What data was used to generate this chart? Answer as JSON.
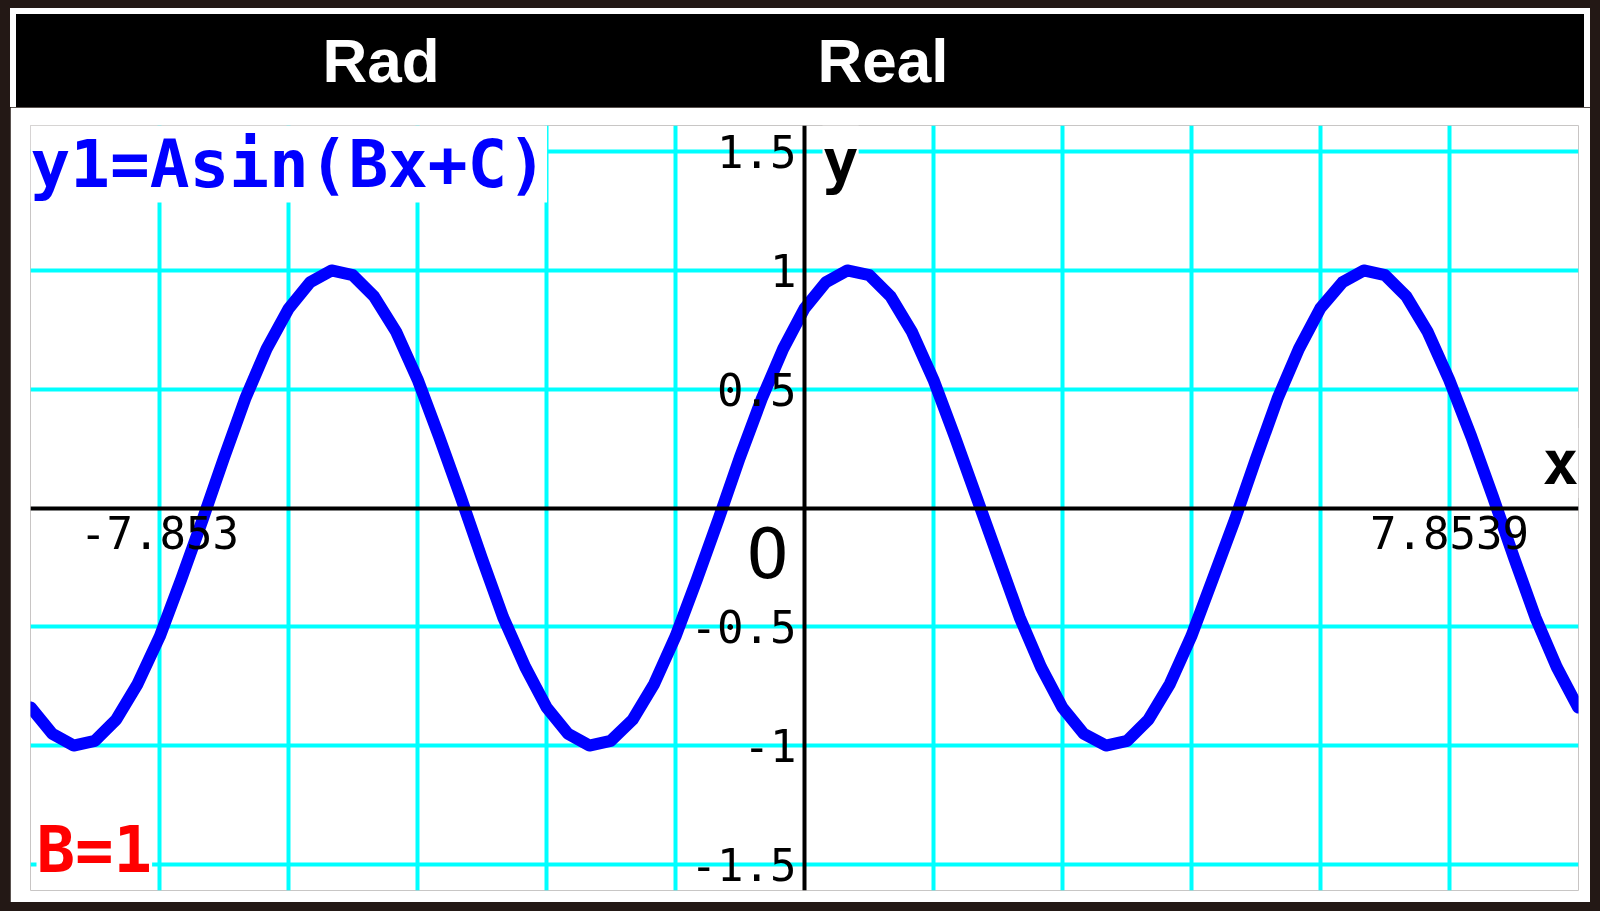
{
  "chart_data": {
    "type": "line",
    "title": "y1=Asin(Bx+C)",
    "xlabel": "x",
    "ylabel": "y",
    "x": [
      -9.42,
      -9.16,
      -8.9,
      -8.64,
      -8.38,
      -8.12,
      -7.85,
      -7.59,
      -7.33,
      -7.07,
      -6.81,
      -6.55,
      -6.28,
      -6.02,
      -5.76,
      -5.5,
      -5.24,
      -4.97,
      -4.71,
      -4.45,
      -4.19,
      -3.93,
      -3.67,
      -3.4,
      -3.14,
      -2.88,
      -2.62,
      -2.36,
      -2.09,
      -1.83,
      -1.57,
      -1.31,
      -1.05,
      -0.79,
      -0.52,
      -0.26,
      0,
      0.26,
      0.52,
      0.79,
      1.05,
      1.31,
      1.57,
      1.83,
      2.09,
      2.36,
      2.62,
      2.88,
      3.14,
      3.4,
      3.67,
      3.93,
      4.19,
      4.45,
      4.71,
      4.97,
      5.24,
      5.5,
      5.76,
      6.02,
      6.28,
      6.55,
      6.81,
      7.07,
      7.33,
      7.59,
      7.85,
      8.12,
      8.38,
      8.64,
      8.9,
      9.16,
      9.42
    ],
    "series": [
      {
        "color": "#0000ff",
        "values": [
          -0.84,
          -0.95,
          -1.0,
          -0.98,
          -0.89,
          -0.74,
          -0.54,
          -0.3,
          -0.05,
          0.21,
          0.46,
          0.67,
          0.84,
          0.95,
          1.0,
          0.98,
          0.89,
          0.74,
          0.54,
          0.3,
          0.05,
          -0.21,
          -0.46,
          -0.67,
          -0.84,
          -0.95,
          -1.0,
          -0.98,
          -0.89,
          -0.74,
          -0.54,
          -0.3,
          -0.05,
          0.21,
          0.46,
          0.67,
          0.84,
          0.95,
          1.0,
          0.98,
          0.89,
          0.74,
          0.54,
          0.3,
          0.05,
          -0.21,
          -0.46,
          -0.67,
          -0.84,
          -0.95,
          -1.0,
          -0.98,
          -0.89,
          -0.74,
          -0.54,
          -0.3,
          -0.05,
          0.21,
          0.46,
          0.67,
          0.84,
          0.95,
          1.0,
          0.98,
          0.89,
          0.74,
          0.54,
          0.3,
          0.05,
          -0.21,
          -0.46,
          -0.67,
          -0.84
        ]
      }
    ],
    "xlim": [
      -9.4248,
      9.4248
    ],
    "ylim": [
      -1.61,
      1.61
    ],
    "xticks": [
      {
        "value": -9.4248,
        "label": null
      },
      -7.853,
      {
        "value": -6.2832,
        "label": null
      },
      {
        "value": -4.7124,
        "label": null
      },
      {
        "value": -3.1416,
        "label": null
      },
      {
        "value": -1.5708,
        "label": null
      },
      {
        "value": 1.5708,
        "label": null
      },
      {
        "value": 3.1416,
        "label": null
      },
      {
        "value": 4.7124,
        "label": null
      },
      {
        "value": 6.2832,
        "label": null
      },
      7.8539,
      {
        "value": 9.4248,
        "label": null
      }
    ],
    "yticks": [
      1.5,
      1,
      0.5,
      -0.5,
      -1,
      -1.5
    ],
    "grid": true,
    "marker": "none",
    "line_style": "solid",
    "annotations": [
      "Rad",
      "Real",
      "B=1",
      "O"
    ]
  }
}
